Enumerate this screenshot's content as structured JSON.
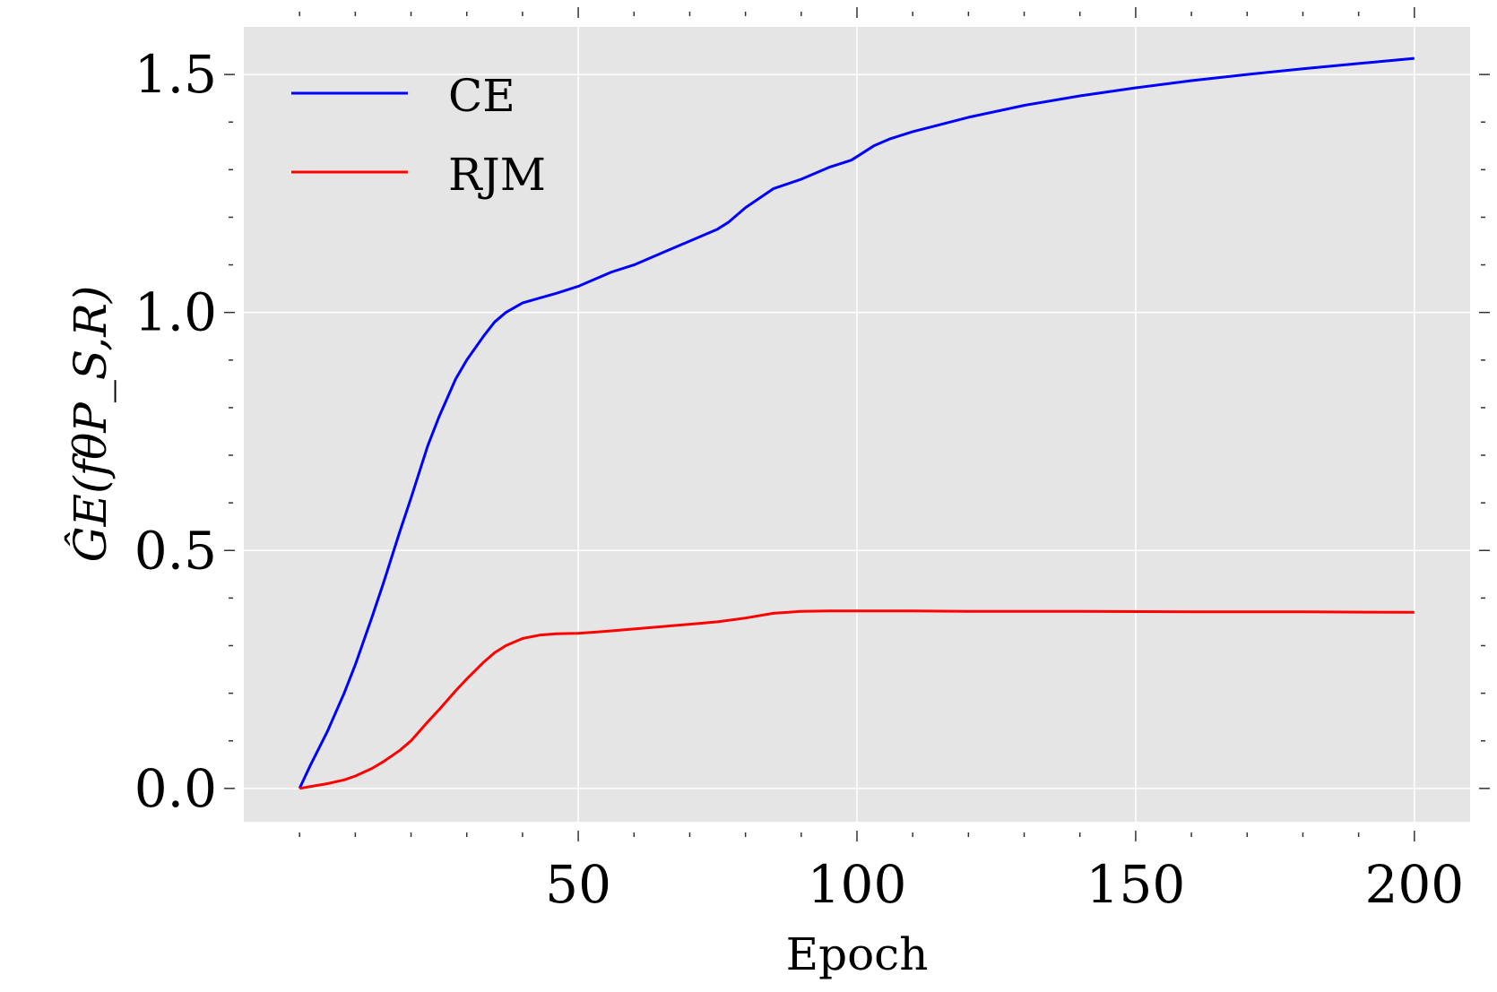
{
  "chart_data": {
    "type": "line",
    "xlabel": "Epoch",
    "ylabel": "ĜE(fθP_S,R)",
    "xlim": [
      -10,
      210
    ],
    "ylim": [
      -0.07,
      1.6
    ],
    "xticks": [
      50,
      100,
      150,
      200
    ],
    "xtick_labels": [
      "50",
      "100",
      "150",
      "200"
    ],
    "xticks_minor": [
      0,
      10,
      20,
      30,
      40,
      60,
      70,
      80,
      90,
      110,
      120,
      130,
      140,
      160,
      170,
      180,
      190
    ],
    "yticks": [
      0.0,
      0.5,
      1.0,
      1.5
    ],
    "ytick_labels": [
      "0.0",
      "0.5",
      "1.0",
      "1.5"
    ],
    "yticks_minor": [
      0.1,
      0.2,
      0.3,
      0.4,
      0.6,
      0.7,
      0.8,
      0.9,
      1.1,
      1.2,
      1.3,
      1.4
    ],
    "grid": true,
    "legend": "top-left",
    "series": [
      {
        "name": "CE",
        "color": "#0000ff",
        "x": [
          0,
          2,
          5,
          8,
          10,
          13,
          15,
          18,
          20,
          23,
          25,
          28,
          30,
          33,
          35,
          37,
          40,
          43,
          46,
          50,
          53,
          56,
          60,
          65,
          70,
          75,
          77,
          80,
          85,
          90,
          95,
          99,
          101,
          103,
          106,
          110,
          115,
          120,
          130,
          140,
          150,
          160,
          170,
          180,
          190,
          200
        ],
        "y": [
          0.0,
          0.05,
          0.12,
          0.2,
          0.26,
          0.36,
          0.43,
          0.54,
          0.61,
          0.72,
          0.78,
          0.86,
          0.9,
          0.95,
          0.98,
          1.0,
          1.02,
          1.03,
          1.04,
          1.055,
          1.07,
          1.085,
          1.1,
          1.125,
          1.15,
          1.175,
          1.19,
          1.22,
          1.26,
          1.28,
          1.305,
          1.32,
          1.335,
          1.35,
          1.365,
          1.38,
          1.395,
          1.41,
          1.435,
          1.455,
          1.472,
          1.487,
          1.5,
          1.512,
          1.523,
          1.534
        ]
      },
      {
        "name": "RJM",
        "color": "#ff0000",
        "x": [
          0,
          3,
          5,
          8,
          10,
          13,
          15,
          18,
          20,
          23,
          25,
          28,
          30,
          33,
          35,
          37,
          40,
          43,
          46,
          50,
          55,
          60,
          65,
          70,
          75,
          80,
          85,
          90,
          95,
          100,
          110,
          120,
          140,
          160,
          180,
          200
        ],
        "y": [
          0.0,
          0.006,
          0.01,
          0.018,
          0.026,
          0.042,
          0.056,
          0.08,
          0.1,
          0.14,
          0.165,
          0.205,
          0.23,
          0.265,
          0.285,
          0.3,
          0.315,
          0.322,
          0.325,
          0.326,
          0.33,
          0.335,
          0.34,
          0.345,
          0.35,
          0.358,
          0.368,
          0.372,
          0.373,
          0.373,
          0.373,
          0.372,
          0.372,
          0.371,
          0.371,
          0.37
        ]
      }
    ]
  }
}
